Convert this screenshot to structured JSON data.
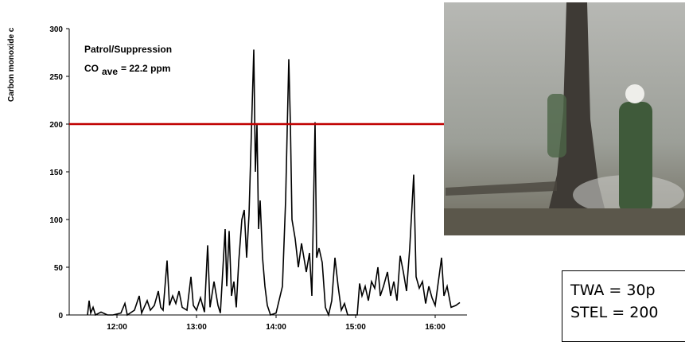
{
  "chart_data": {
    "type": "line",
    "y_axis_label": "Carbon monoxide c",
    "annotations": {
      "activity": "Patrol/Suppression",
      "average_prefix": "CO",
      "average_subscript": "ave",
      "average_suffix": "= 22.2 ppm"
    },
    "threshold": {
      "value": 200,
      "color": "#c00000"
    },
    "xlim": [
      11.4,
      16.4
    ],
    "ylim": [
      0,
      300
    ],
    "xticks": [
      {
        "value": 12,
        "label": "12:00"
      },
      {
        "value": 13,
        "label": "13:00"
      },
      {
        "value": 14,
        "label": "14:00"
      },
      {
        "value": 15,
        "label": "15:00"
      },
      {
        "value": 16,
        "label": "16:00"
      }
    ],
    "yticks": [
      0,
      50,
      100,
      150,
      200,
      250,
      300
    ],
    "series": [
      {
        "color": "#000000",
        "x": [
          11.63,
          11.65,
          11.67,
          11.7,
          11.73,
          11.8,
          11.88,
          11.95,
          12.05,
          12.1,
          12.13,
          12.22,
          12.28,
          12.31,
          12.38,
          12.42,
          12.47,
          12.52,
          12.55,
          12.58,
          12.63,
          12.66,
          12.7,
          12.74,
          12.78,
          12.82,
          12.88,
          12.93,
          12.96,
          13.0,
          13.05,
          13.1,
          13.14,
          13.17,
          13.22,
          13.27,
          13.3,
          13.36,
          13.38,
          13.41,
          13.44,
          13.47,
          13.5,
          13.53,
          13.57,
          13.6,
          13.63,
          13.66,
          13.72,
          13.74,
          13.76,
          13.78,
          13.8,
          13.83,
          13.86,
          13.89,
          13.93,
          14.0,
          14.08,
          14.12,
          14.16,
          14.18,
          14.2,
          14.24,
          14.28,
          14.32,
          14.35,
          14.38,
          14.42,
          14.45,
          14.49,
          14.51,
          14.54,
          14.58,
          14.62,
          14.66,
          14.7,
          14.74,
          14.78,
          14.82,
          14.86,
          14.9,
          15.02,
          15.05,
          15.08,
          15.12,
          15.16,
          15.2,
          15.24,
          15.28,
          15.31,
          15.35,
          15.4,
          15.44,
          15.48,
          15.52,
          15.56,
          15.6,
          15.64,
          15.68,
          15.73,
          15.76,
          15.8,
          15.84,
          15.88,
          15.92,
          15.96,
          16.0,
          16.04,
          16.08,
          16.11,
          16.15,
          16.2,
          16.26,
          16.31
        ],
        "values": [
          0,
          15,
          2,
          8,
          0,
          3,
          0,
          0,
          2,
          12,
          0,
          5,
          20,
          2,
          15,
          5,
          10,
          25,
          8,
          5,
          57,
          10,
          20,
          12,
          25,
          8,
          5,
          40,
          10,
          5,
          18,
          3,
          73,
          8,
          35,
          10,
          2,
          90,
          30,
          88,
          20,
          35,
          8,
          55,
          100,
          110,
          60,
          105,
          278,
          150,
          200,
          90,
          120,
          60,
          30,
          10,
          0,
          2,
          30,
          120,
          268,
          200,
          100,
          80,
          50,
          75,
          60,
          45,
          65,
          20,
          202,
          60,
          70,
          55,
          8,
          0,
          15,
          60,
          30,
          5,
          12,
          0,
          0,
          33,
          20,
          30,
          15,
          35,
          28,
          50,
          20,
          30,
          45,
          20,
          35,
          15,
          62,
          45,
          25,
          70,
          147,
          40,
          28,
          35,
          12,
          30,
          18,
          10,
          35,
          60,
          20,
          30,
          8,
          10,
          13
        ]
      }
    ]
  },
  "text_box": {
    "lines": [
      "TWA = 30p",
      "STEL = 200"
    ]
  }
}
